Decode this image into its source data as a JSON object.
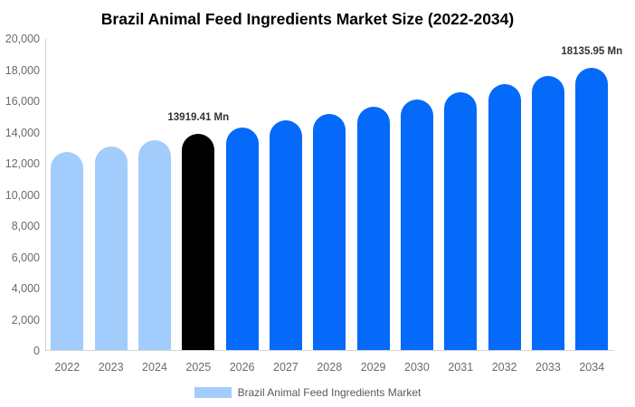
{
  "title": "Brazil Animal Feed Ingredients Market Size (2022-2034)",
  "legend": {
    "label": "Brazil Animal Feed Ingredients Market",
    "swatch_color": "#a2ccfb"
  },
  "colors": {
    "historical_bar": "#a2ccfb",
    "highlight_bar": "#000000",
    "forecast_bar": "#0569f9",
    "axis_line": "#d4d4d4",
    "tick_text": "#6b6b6b",
    "value_label_text": "#333333",
    "legend_text": "#595959",
    "title_text": "#000000",
    "background": "#ffffff"
  },
  "chart_data": {
    "type": "bar",
    "title": "Brazil Animal Feed Ingredients Market Size (2022-2034)",
    "xlabel": "",
    "ylabel": "",
    "unit": "Mn",
    "ylim": [
      0,
      20000
    ],
    "grid": false,
    "legend_position": "bottom",
    "categories": [
      "2022",
      "2023",
      "2024",
      "2025",
      "2026",
      "2027",
      "2028",
      "2029",
      "2030",
      "2031",
      "2032",
      "2033",
      "2034"
    ],
    "values": [
      12740,
      13120,
      13510,
      13919.41,
      14330,
      14760,
      15200,
      15650,
      16120,
      16600,
      17090,
      17600,
      18135.95
    ],
    "bar_colors": [
      "#a2ccfb",
      "#a2ccfb",
      "#a2ccfb",
      "#000000",
      "#0569f9",
      "#0569f9",
      "#0569f9",
      "#0569f9",
      "#0569f9",
      "#0569f9",
      "#0569f9",
      "#0569f9",
      "#0569f9"
    ],
    "series_name": "Brazil Animal Feed Ingredients Market",
    "y_ticks": [
      0,
      2000,
      4000,
      6000,
      8000,
      10000,
      12000,
      14000,
      16000,
      18000,
      20000
    ],
    "y_tick_labels": [
      "0",
      "2,000",
      "4,000",
      "6,000",
      "8,000",
      "10,000",
      "12,000",
      "14,000",
      "16,000",
      "18,000",
      "20,000"
    ],
    "annotations": [
      {
        "category": "2025",
        "text": "13919.41 Mn"
      },
      {
        "category": "2034",
        "text": "18135.95 Mn"
      }
    ]
  }
}
